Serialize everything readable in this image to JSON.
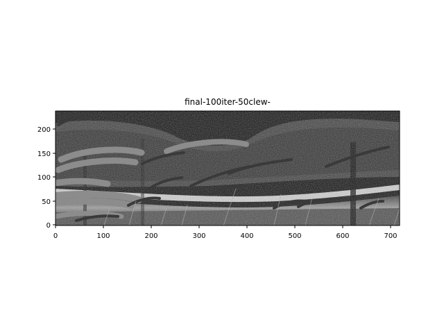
{
  "figure": {
    "title": "final-100iter-50clew-",
    "x_axis": {
      "range": [
        0,
        720
      ],
      "ticks": [
        "0",
        "100",
        "200",
        "300",
        "400",
        "500",
        "600",
        "700"
      ]
    },
    "y_axis": {
      "range": [
        0,
        240
      ],
      "ticks": [
        "0",
        "50",
        "100",
        "150",
        "200"
      ]
    },
    "image_description_colors": {
      "background": "#0a0a0a",
      "bright_band": "#d8d8d8",
      "thick_strokes": "#8c8c8c",
      "dark_strokes": "#3a3a3a",
      "thin_lines": "#b4b4b4"
    }
  }
}
